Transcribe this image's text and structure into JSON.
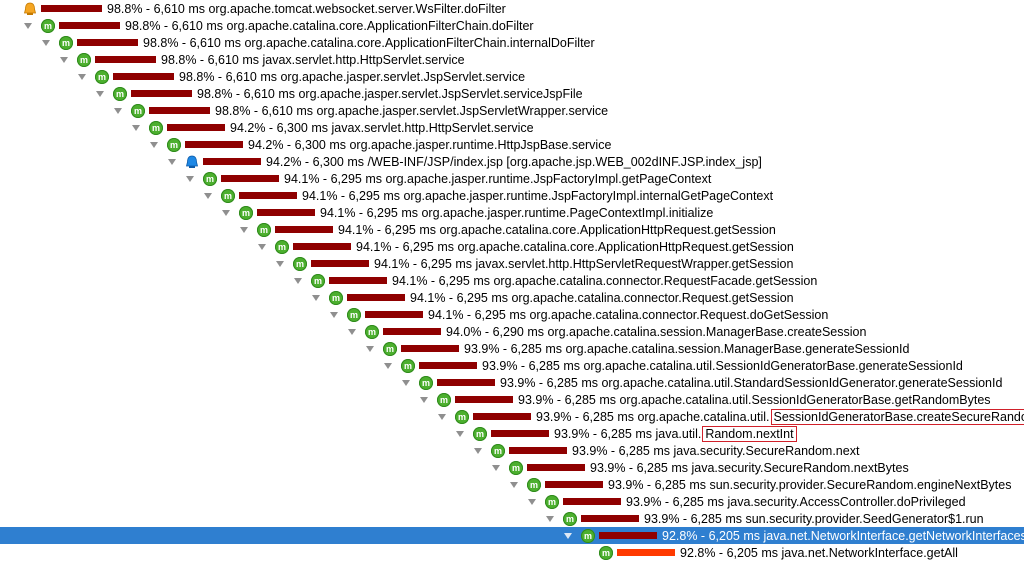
{
  "colors": {
    "selected_bg": "#2f7fd0",
    "bar": "#8f0000",
    "bar_hot": "#ff3a00",
    "method_icon": "#4caf2e",
    "highlight_border": "#d0202a"
  },
  "rows": [
    {
      "icon": "servlet-icon",
      "pct": "98.8%",
      "time": "6,610 ms",
      "method": "org.apache.tomcat.websocket.server.WsFilter.doFilter"
    },
    {
      "icon": "method-icon",
      "pct": "98.8%",
      "time": "6,610 ms",
      "method": "org.apache.catalina.core.ApplicationFilterChain.doFilter"
    },
    {
      "icon": "method-icon",
      "pct": "98.8%",
      "time": "6,610 ms",
      "method": "org.apache.catalina.core.ApplicationFilterChain.internalDoFilter"
    },
    {
      "icon": "method-icon",
      "pct": "98.8%",
      "time": "6,610 ms",
      "method": "javax.servlet.http.HttpServlet.service"
    },
    {
      "icon": "method-icon",
      "pct": "98.8%",
      "time": "6,610 ms",
      "method": "org.apache.jasper.servlet.JspServlet.service"
    },
    {
      "icon": "method-icon",
      "pct": "98.8%",
      "time": "6,610 ms",
      "method": "org.apache.jasper.servlet.JspServlet.serviceJspFile"
    },
    {
      "icon": "method-icon",
      "pct": "98.8%",
      "time": "6,610 ms",
      "method": "org.apache.jasper.servlet.JspServletWrapper.service"
    },
    {
      "icon": "method-icon",
      "pct": "94.2%",
      "time": "6,300 ms",
      "method": "javax.servlet.http.HttpServlet.service"
    },
    {
      "icon": "method-icon",
      "pct": "94.2%",
      "time": "6,300 ms",
      "method": "org.apache.jasper.runtime.HttpJspBase.service"
    },
    {
      "icon": "jsp-icon",
      "pct": "94.2%",
      "time": "6,300 ms",
      "method": "/WEB-INF/JSP/index.jsp [org.apache.jsp.WEB_002dINF.JSP.index_jsp]"
    },
    {
      "icon": "method-icon",
      "pct": "94.1%",
      "time": "6,295 ms",
      "method": "org.apache.jasper.runtime.JspFactoryImpl.getPageContext"
    },
    {
      "icon": "method-icon",
      "pct": "94.1%",
      "time": "6,295 ms",
      "method": "org.apache.jasper.runtime.JspFactoryImpl.internalGetPageContext"
    },
    {
      "icon": "method-icon",
      "pct": "94.1%",
      "time": "6,295 ms",
      "method": "org.apache.jasper.runtime.PageContextImpl.initialize"
    },
    {
      "icon": "method-icon",
      "pct": "94.1%",
      "time": "6,295 ms",
      "method": "org.apache.catalina.core.ApplicationHttpRequest.getSession"
    },
    {
      "icon": "method-icon",
      "pct": "94.1%",
      "time": "6,295 ms",
      "method": "org.apache.catalina.core.ApplicationHttpRequest.getSession"
    },
    {
      "icon": "method-icon",
      "pct": "94.1%",
      "time": "6,295 ms",
      "method": "javax.servlet.http.HttpServletRequestWrapper.getSession"
    },
    {
      "icon": "method-icon",
      "pct": "94.1%",
      "time": "6,295 ms",
      "method": "org.apache.catalina.connector.RequestFacade.getSession"
    },
    {
      "icon": "method-icon",
      "pct": "94.1%",
      "time": "6,295 ms",
      "method": "org.apache.catalina.connector.Request.getSession"
    },
    {
      "icon": "method-icon",
      "pct": "94.1%",
      "time": "6,295 ms",
      "method": "org.apache.catalina.connector.Request.doGetSession"
    },
    {
      "icon": "method-icon",
      "pct": "94.0%",
      "time": "6,290 ms",
      "method": "org.apache.catalina.session.ManagerBase.createSession"
    },
    {
      "icon": "method-icon",
      "pct": "93.9%",
      "time": "6,285 ms",
      "method": "org.apache.catalina.session.ManagerBase.generateSessionId"
    },
    {
      "icon": "method-icon",
      "pct": "93.9%",
      "time": "6,285 ms",
      "method": "org.apache.catalina.util.SessionIdGeneratorBase.generateSessionId"
    },
    {
      "icon": "method-icon",
      "pct": "93.9%",
      "time": "6,285 ms",
      "method": "org.apache.catalina.util.StandardSessionIdGenerator.generateSessionId"
    },
    {
      "icon": "method-icon",
      "pct": "93.9%",
      "time": "6,285 ms",
      "method": "org.apache.catalina.util.SessionIdGeneratorBase.getRandomBytes"
    },
    {
      "icon": "method-icon",
      "pct": "93.9%",
      "time": "6,285 ms",
      "method": "org.apache.catalina.util.",
      "highlight": "SessionIdGeneratorBase.createSecureRandom"
    },
    {
      "icon": "method-icon",
      "pct": "93.9%",
      "time": "6,285 ms",
      "method": "java.util.",
      "highlight": "Random.nextInt"
    },
    {
      "icon": "method-icon",
      "pct": "93.9%",
      "time": "6,285 ms",
      "method": "java.security.SecureRandom.next"
    },
    {
      "icon": "method-icon",
      "pct": "93.9%",
      "time": "6,285 ms",
      "method": "java.security.SecureRandom.nextBytes"
    },
    {
      "icon": "method-icon",
      "pct": "93.9%",
      "time": "6,285 ms",
      "method": "sun.security.provider.SecureRandom.engineNextBytes"
    },
    {
      "icon": "method-icon",
      "pct": "93.9%",
      "time": "6,285 ms",
      "method": "java.security.AccessController.doPrivileged"
    },
    {
      "icon": "method-icon",
      "pct": "93.9%",
      "time": "6,285 ms",
      "method": "sun.security.provider.SeedGenerator$1.run"
    },
    {
      "icon": "method-icon",
      "pct": "92.8%",
      "time": "6,205 ms",
      "method": "java.net.NetworkInterface.getNetworkInterfaces",
      "selected": true
    },
    {
      "icon": "method-icon",
      "pct": "92.8%",
      "time": "6,205 ms",
      "method": "java.net.NetworkInterface.getAll",
      "leaf": true,
      "hot": true
    }
  ]
}
